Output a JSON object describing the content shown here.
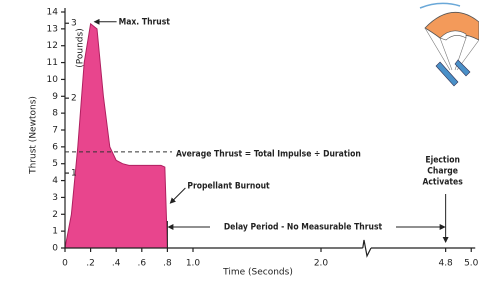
{
  "chart_data": {
    "type": "area",
    "y_label": "Thrust (Newtons)",
    "y2_label": "(Pounds)",
    "x_label": "Time (Seconds)",
    "color": "#e8458d",
    "x": [
      0,
      0.05,
      0.1,
      0.15,
      0.2,
      0.25,
      0.3,
      0.35,
      0.4,
      0.45,
      0.5,
      0.6,
      0.75,
      0.78,
      0.8
    ],
    "values": [
      0,
      2,
      6,
      11,
      13.3,
      13,
      9,
      6,
      5.2,
      5,
      4.9,
      4.9,
      4.9,
      4.8,
      0
    ],
    "ylim": [
      0,
      14
    ],
    "yticks": [
      0,
      1,
      2,
      3,
      4,
      5,
      6,
      7,
      8,
      9,
      10,
      11,
      12,
      13,
      14
    ],
    "y2lim": [
      0,
      3.15
    ],
    "y2ticks": [
      1,
      2,
      3
    ],
    "xlim": [
      0,
      5.0
    ],
    "x_break": [
      2.35,
      4.17
    ],
    "xticks": [
      0,
      {
        "value": 0.2,
        "label": ".2"
      },
      {
        "value": 0.4,
        "label": ".4"
      },
      {
        "value": 0.6,
        "label": ".6"
      },
      {
        "value": 0.8,
        "label": ".8"
      },
      {
        "value": 1.0,
        "label": "1.0"
      },
      {
        "value": 2.0,
        "label": "2.0"
      },
      {
        "value": 4.8,
        "label": "4.8"
      },
      {
        "value": 5.0,
        "label": "5.0"
      }
    ],
    "max_thrust": {
      "label": "Max. Thrust",
      "value": 13.3
    },
    "average_thrust": {
      "label": "Average Thrust = Total Impulse ÷ Duration",
      "value": 5.7
    },
    "burnout": {
      "label": "Propellant Burnout",
      "value": 0.8
    },
    "delay_period": {
      "label": "Delay Period - No Measurable Thrust",
      "start": 0.8,
      "end": 4.8
    },
    "ejection": {
      "label": [
        "Ejection",
        "Charge",
        "Activates"
      ],
      "value": 4.8
    }
  }
}
